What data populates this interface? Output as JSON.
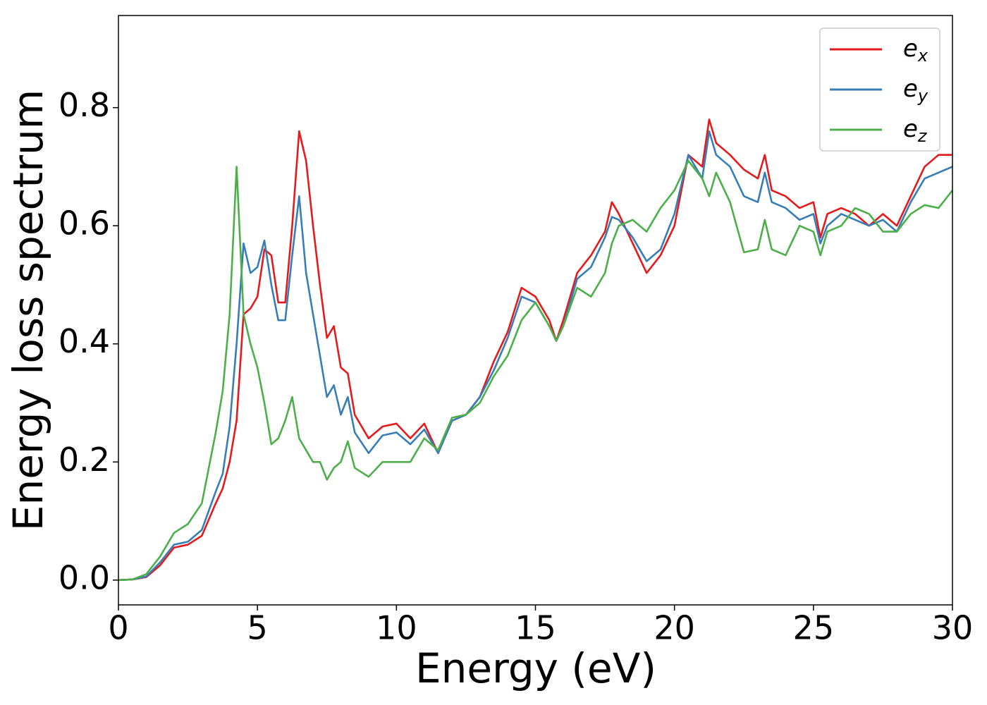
{
  "chart_data": {
    "type": "line",
    "xlabel": "Energy (eV)",
    "ylabel": "Energy loss spectrum",
    "x": [
      0,
      0.5,
      1,
      1.5,
      2,
      2.5,
      3,
      3.5,
      3.75,
      4,
      4.25,
      4.5,
      4.75,
      5,
      5.25,
      5.5,
      5.75,
      6,
      6.25,
      6.5,
      6.75,
      7,
      7.25,
      7.5,
      7.75,
      8,
      8.25,
      8.5,
      9,
      9.5,
      10,
      10.5,
      11,
      11.5,
      12,
      12.5,
      13,
      13.5,
      14,
      14.5,
      15,
      15.5,
      15.75,
      16,
      16.5,
      17,
      17.5,
      17.75,
      18,
      18.5,
      19,
      19.5,
      20,
      20.5,
      21,
      21.25,
      21.5,
      22,
      22.5,
      23,
      23.25,
      23.5,
      24,
      24.5,
      25,
      25.25,
      25.5,
      26,
      26.5,
      27,
      27.5,
      28,
      28.5,
      29,
      29.5,
      30
    ],
    "series": [
      {
        "name": "e_x",
        "color": "#e41a1c",
        "values": [
          0,
          0.001,
          0.005,
          0.025,
          0.055,
          0.06,
          0.075,
          0.13,
          0.155,
          0.2,
          0.27,
          0.45,
          0.46,
          0.48,
          0.56,
          0.55,
          0.47,
          0.47,
          0.6,
          0.76,
          0.71,
          0.6,
          0.5,
          0.41,
          0.43,
          0.36,
          0.35,
          0.28,
          0.24,
          0.26,
          0.265,
          0.24,
          0.265,
          0.215,
          0.27,
          0.28,
          0.31,
          0.37,
          0.42,
          0.495,
          0.48,
          0.44,
          0.405,
          0.44,
          0.52,
          0.55,
          0.59,
          0.64,
          0.62,
          0.57,
          0.52,
          0.55,
          0.6,
          0.72,
          0.7,
          0.78,
          0.74,
          0.72,
          0.695,
          0.68,
          0.72,
          0.66,
          0.65,
          0.63,
          0.64,
          0.58,
          0.62,
          0.63,
          0.62,
          0.6,
          0.62,
          0.6,
          0.65,
          0.7,
          0.72,
          0.72
        ]
      },
      {
        "name": "e_y",
        "color": "#377eb8",
        "values": [
          0,
          0.001,
          0.006,
          0.03,
          0.06,
          0.065,
          0.085,
          0.15,
          0.18,
          0.26,
          0.4,
          0.57,
          0.52,
          0.53,
          0.575,
          0.5,
          0.44,
          0.44,
          0.55,
          0.65,
          0.52,
          0.45,
          0.38,
          0.31,
          0.33,
          0.28,
          0.31,
          0.25,
          0.215,
          0.245,
          0.25,
          0.23,
          0.255,
          0.215,
          0.27,
          0.28,
          0.31,
          0.355,
          0.41,
          0.48,
          0.47,
          0.43,
          0.405,
          0.43,
          0.51,
          0.53,
          0.58,
          0.615,
          0.61,
          0.58,
          0.54,
          0.56,
          0.62,
          0.72,
          0.68,
          0.76,
          0.72,
          0.7,
          0.65,
          0.64,
          0.69,
          0.64,
          0.63,
          0.61,
          0.62,
          0.57,
          0.6,
          0.62,
          0.61,
          0.6,
          0.61,
          0.59,
          0.64,
          0.68,
          0.69,
          0.7
        ]
      },
      {
        "name": "e_z",
        "color": "#4daf4a",
        "values": [
          0,
          0.001,
          0.01,
          0.04,
          0.08,
          0.095,
          0.13,
          0.25,
          0.32,
          0.45,
          0.7,
          0.45,
          0.4,
          0.36,
          0.3,
          0.23,
          0.24,
          0.27,
          0.31,
          0.24,
          0.22,
          0.2,
          0.2,
          0.17,
          0.19,
          0.2,
          0.235,
          0.19,
          0.175,
          0.2,
          0.2,
          0.2,
          0.24,
          0.22,
          0.275,
          0.28,
          0.3,
          0.345,
          0.38,
          0.44,
          0.47,
          0.43,
          0.405,
          0.43,
          0.495,
          0.48,
          0.52,
          0.57,
          0.6,
          0.61,
          0.59,
          0.63,
          0.66,
          0.71,
          0.68,
          0.65,
          0.69,
          0.64,
          0.555,
          0.56,
          0.61,
          0.56,
          0.55,
          0.6,
          0.59,
          0.55,
          0.59,
          0.6,
          0.63,
          0.62,
          0.59,
          0.59,
          0.62,
          0.635,
          0.63,
          0.66
        ]
      }
    ],
    "xlim": [
      0,
      30
    ],
    "xticks": [
      0,
      5,
      10,
      15,
      20,
      25,
      30
    ],
    "ylim": [
      -0.042,
      0.956
    ],
    "yticks": [
      {
        "value": 0,
        "label": "0.0"
      },
      0.2,
      0.4,
      0.6,
      0.8
    ],
    "grid": false,
    "legend": "upper right"
  }
}
